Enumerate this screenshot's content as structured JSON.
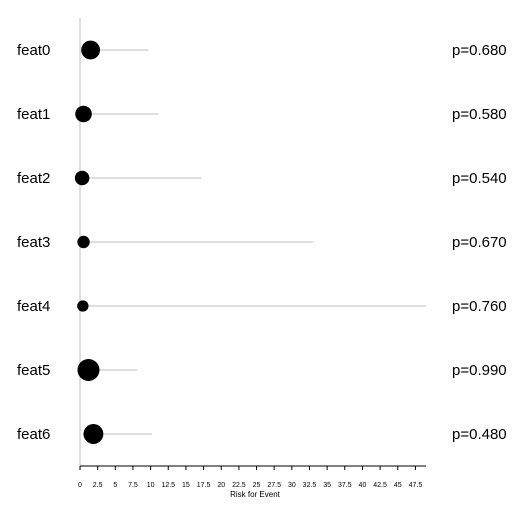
{
  "chart_data": {
    "type": "scatter",
    "xlabel": "Risk for Event",
    "xlim": [
      0,
      49
    ],
    "xticks": [
      "0",
      "2.5",
      "5",
      "7.5",
      "10",
      "12.5",
      "15",
      "17.5",
      "20",
      "22.5",
      "25",
      "27.5",
      "30",
      "32.5",
      "35",
      "37.5",
      "40",
      "42.5",
      "45",
      "47.5"
    ],
    "rows": [
      {
        "feature": "feat0",
        "p_text": "p=0.680",
        "estimate": 1.5,
        "ci_low": 0.3,
        "ci_high": 9.7,
        "marker_weight": 0.79
      },
      {
        "feature": "feat1",
        "p_text": "p=0.580",
        "estimate": 0.5,
        "ci_low": 0.1,
        "ci_high": 11.1,
        "marker_weight": 0.64
      },
      {
        "feature": "feat2",
        "p_text": "p=0.540",
        "estimate": 0.3,
        "ci_low": 0.05,
        "ci_high": 17.2,
        "marker_weight": 0.5
      },
      {
        "feature": "feat3",
        "p_text": "p=0.670",
        "estimate": 0.5,
        "ci_low": 0.05,
        "ci_high": 33.0,
        "marker_weight": 0.36
      },
      {
        "feature": "feat4",
        "p_text": "p=0.760",
        "estimate": 0.4,
        "ci_low": 0.05,
        "ci_high": 49.0,
        "marker_weight": 0.29
      },
      {
        "feature": "feat5",
        "p_text": "p=0.990",
        "estimate": 1.2,
        "ci_low": 0.1,
        "ci_high": 8.1,
        "marker_weight": 1.0
      },
      {
        "feature": "feat6",
        "p_text": "p=0.480",
        "estimate": 1.9,
        "ci_low": 0.4,
        "ci_high": 10.2,
        "marker_weight": 0.86
      }
    ]
  }
}
